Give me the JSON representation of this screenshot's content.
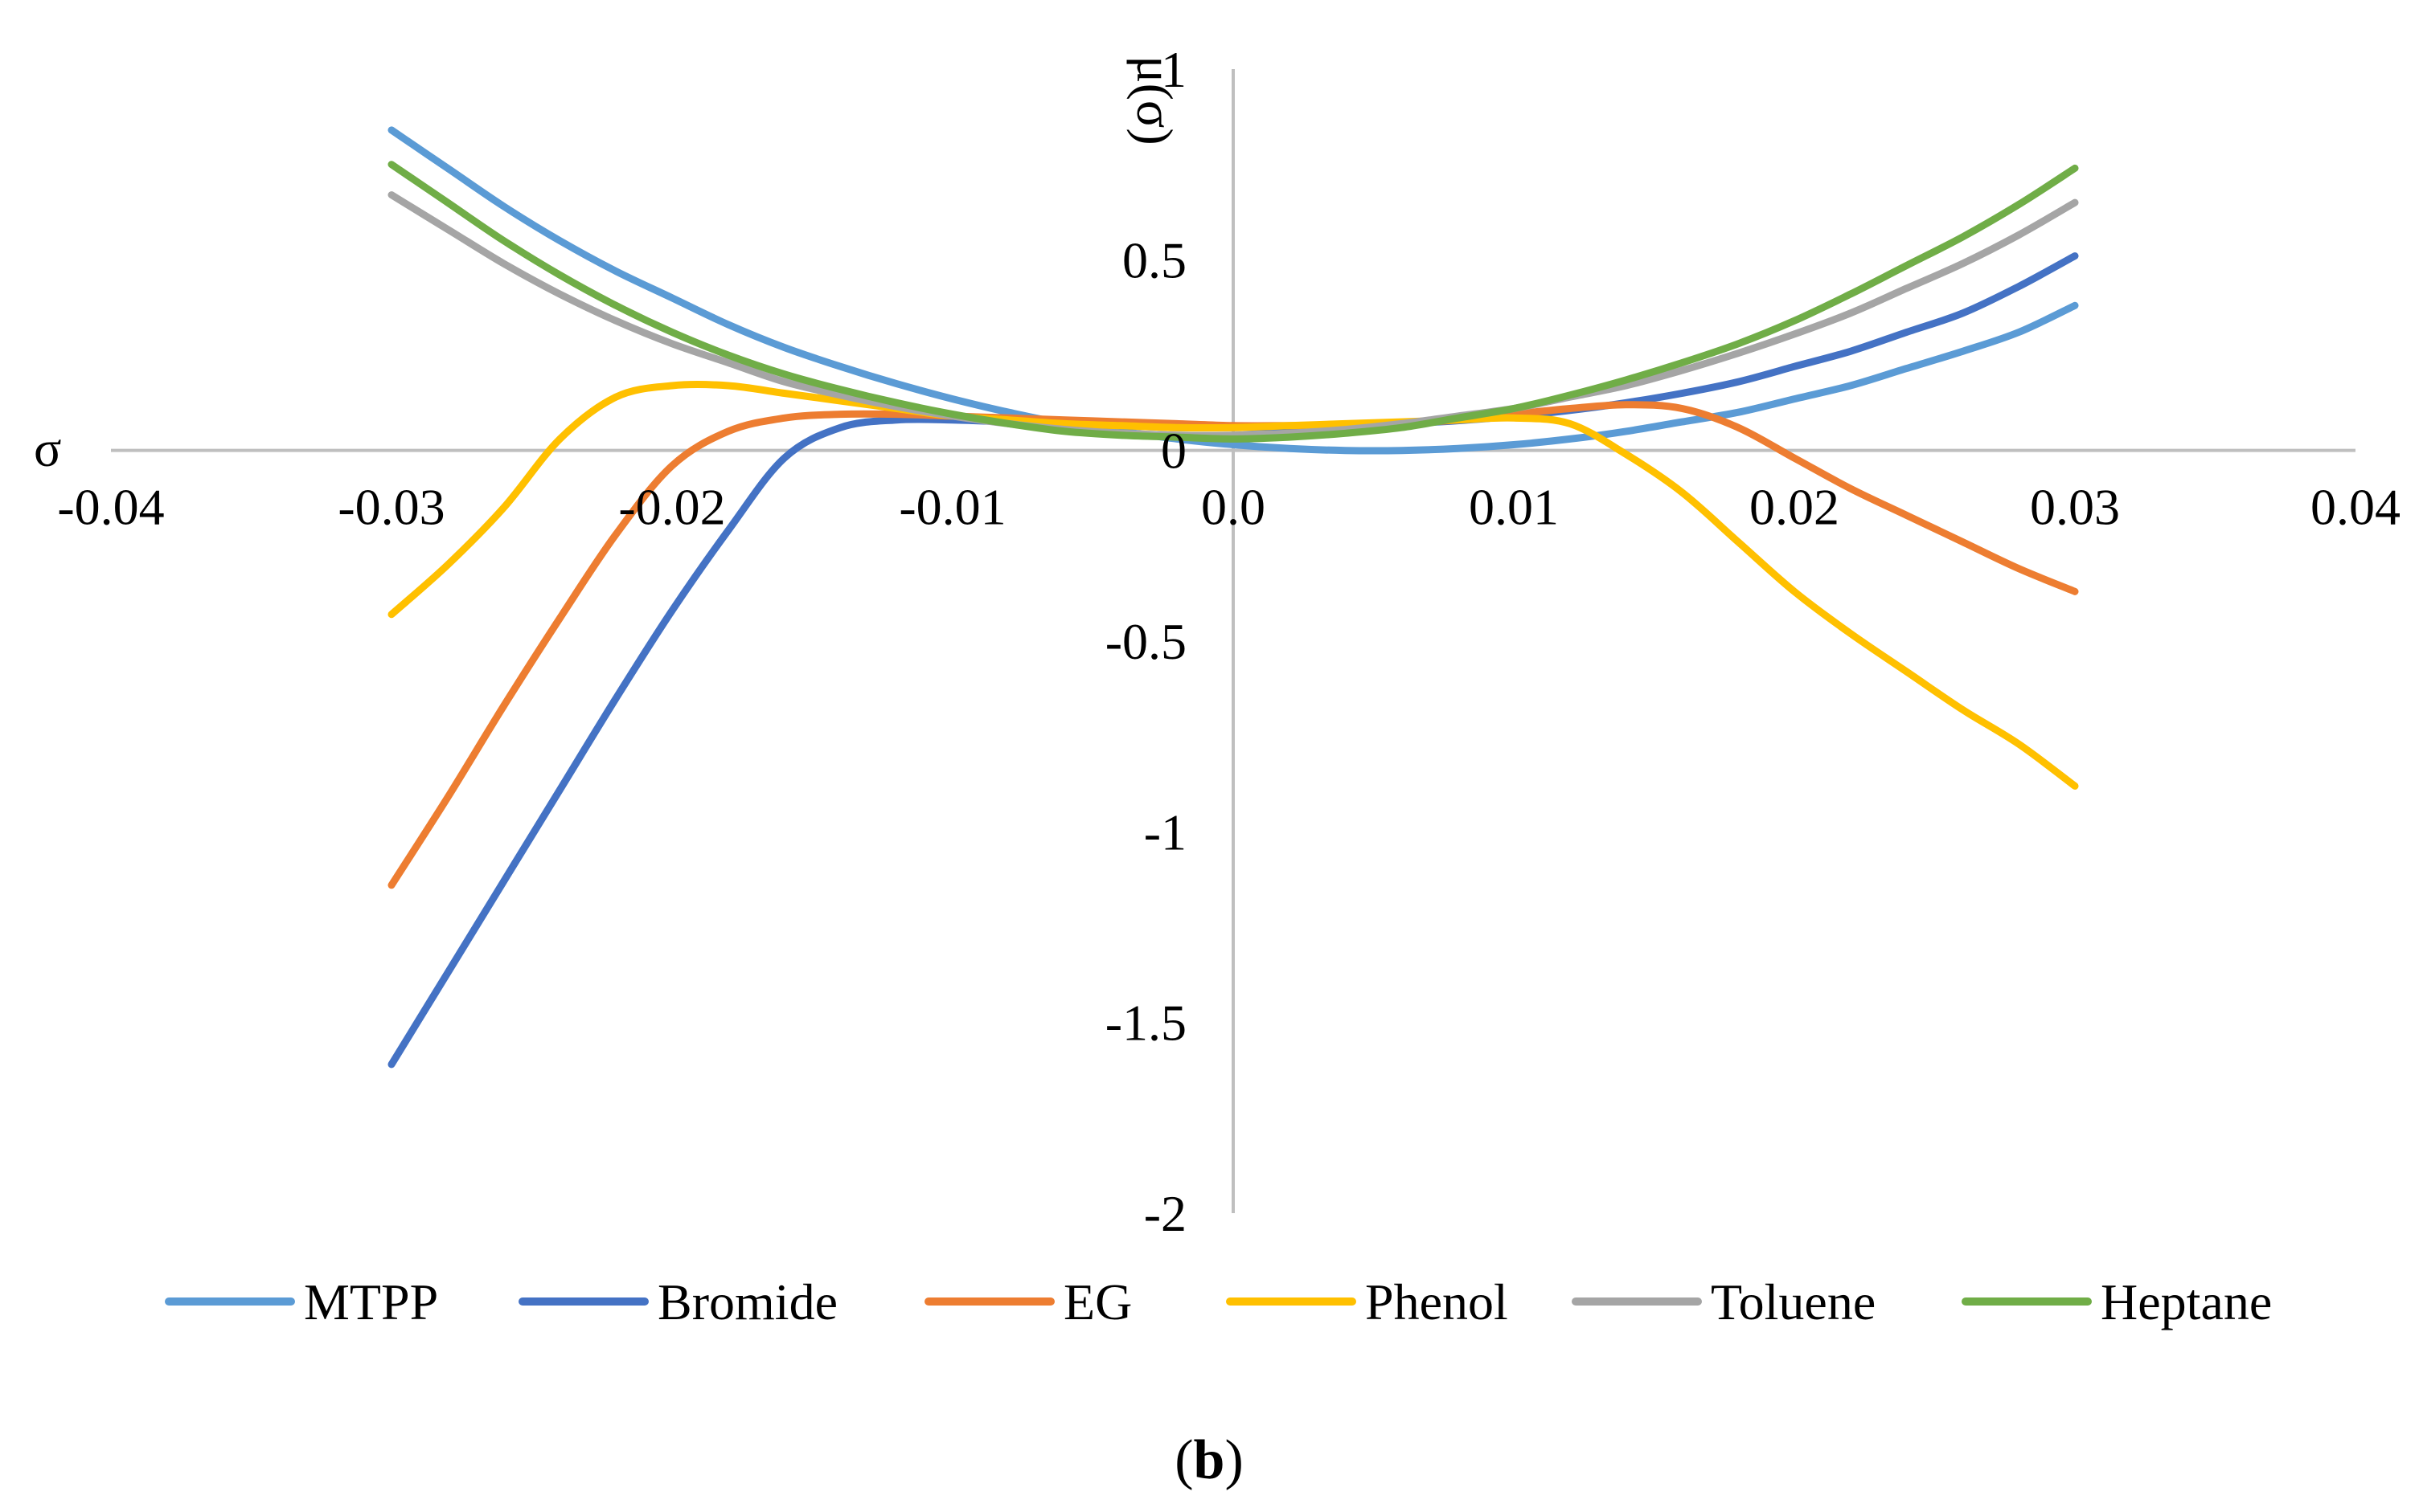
{
  "chart_data": {
    "type": "line",
    "title": "",
    "xlabel": "σ",
    "ylabel": "μ(σ)",
    "xlim": [
      -0.04,
      0.04
    ],
    "ylim": [
      -2,
      1
    ],
    "xticks": [
      -0.04,
      -0.03,
      -0.02,
      -0.01,
      0.0,
      0.01,
      0.02,
      0.03,
      0.04
    ],
    "xtick_labels": [
      "-0.04",
      "-0.03",
      "-0.02",
      "-0.01",
      "0.0",
      "0.01",
      "0.02",
      "0.03",
      "0.04"
    ],
    "yticks": [
      1,
      0.5,
      0,
      -0.5,
      -1,
      -1.5,
      -2
    ],
    "ytick_labels": [
      "1",
      "0.5",
      "0",
      "-0.5",
      "-1",
      "-1.5",
      "-2"
    ],
    "grid": false,
    "legend_position": "bottom",
    "x": [
      -0.03,
      -0.028,
      -0.026,
      -0.024,
      -0.022,
      -0.02,
      -0.018,
      -0.016,
      -0.014,
      -0.012,
      -0.01,
      -0.008,
      -0.006,
      -0.004,
      -0.002,
      0.0,
      0.002,
      0.004,
      0.006,
      0.008,
      0.01,
      0.012,
      0.014,
      0.016,
      0.018,
      0.02,
      0.022,
      0.024,
      0.026,
      0.028,
      0.03
    ],
    "series": [
      {
        "name": "MTPP",
        "color": "#5B9BD5",
        "values": [
          0.84,
          0.74,
          0.64,
          0.55,
          0.47,
          0.4,
          0.33,
          0.27,
          0.22,
          0.175,
          0.135,
          0.1,
          0.07,
          0.05,
          0.03,
          0.015,
          0.005,
          0.0,
          0.0,
          0.005,
          0.015,
          0.03,
          0.05,
          0.075,
          0.1,
          0.135,
          0.17,
          0.215,
          0.26,
          0.31,
          0.38
        ]
      },
      {
        "name": "Bromide",
        "color": "#4472C4",
        "values": [
          -1.61,
          -1.37,
          -1.13,
          -0.89,
          -0.65,
          -0.42,
          -0.21,
          -0.02,
          0.06,
          0.08,
          0.08,
          0.075,
          0.07,
          0.065,
          0.06,
          0.06,
          0.062,
          0.065,
          0.07,
          0.078,
          0.09,
          0.105,
          0.125,
          0.15,
          0.18,
          0.22,
          0.26,
          0.31,
          0.36,
          0.43,
          0.51
        ]
      },
      {
        "name": "EG",
        "color": "#ED7D31",
        "values": [
          -1.14,
          -0.91,
          -0.67,
          -0.44,
          -0.22,
          -0.04,
          0.05,
          0.085,
          0.095,
          0.095,
          0.09,
          0.085,
          0.08,
          0.075,
          0.07,
          0.065,
          0.065,
          0.065,
          0.07,
          0.08,
          0.095,
          0.11,
          0.12,
          0.11,
          0.06,
          -0.02,
          -0.1,
          -0.17,
          -0.24,
          -0.31,
          -0.37
        ]
      },
      {
        "name": "Phenol",
        "color": "#FFC000",
        "values": [
          -0.43,
          -0.3,
          -0.15,
          0.03,
          0.14,
          0.17,
          0.17,
          0.15,
          0.13,
          0.11,
          0.09,
          0.08,
          0.07,
          0.065,
          0.06,
          0.06,
          0.065,
          0.07,
          0.075,
          0.08,
          0.085,
          0.07,
          -0.01,
          -0.11,
          -0.24,
          -0.37,
          -0.48,
          -0.58,
          -0.68,
          -0.77,
          -0.88
        ]
      },
      {
        "name": "Toluene",
        "color": "#A5A5A5",
        "values": [
          0.67,
          0.58,
          0.49,
          0.41,
          0.34,
          0.28,
          0.23,
          0.18,
          0.145,
          0.115,
          0.09,
          0.07,
          0.055,
          0.045,
          0.04,
          0.04,
          0.045,
          0.055,
          0.07,
          0.09,
          0.11,
          0.14,
          0.17,
          0.21,
          0.255,
          0.305,
          0.36,
          0.425,
          0.49,
          0.565,
          0.65
        ]
      },
      {
        "name": "Heptane",
        "color": "#70AD47",
        "values": [
          0.75,
          0.65,
          0.55,
          0.46,
          0.38,
          0.31,
          0.25,
          0.2,
          0.16,
          0.125,
          0.095,
          0.07,
          0.05,
          0.04,
          0.035,
          0.03,
          0.035,
          0.045,
          0.06,
          0.085,
          0.11,
          0.145,
          0.185,
          0.23,
          0.28,
          0.34,
          0.41,
          0.485,
          0.56,
          0.645,
          0.74
        ]
      }
    ]
  },
  "caption": {
    "open": "(",
    "letter": "b",
    "close": ")"
  }
}
